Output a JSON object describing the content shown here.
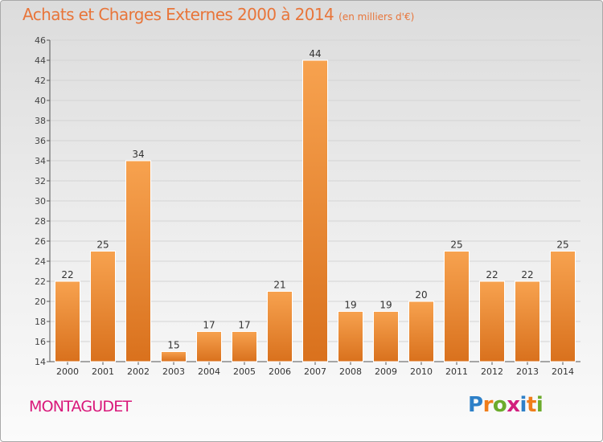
{
  "title": "Achats et Charges Externes 2000 à 2014",
  "unit": "(en milliers d'€)",
  "town": "MONTAGUDET",
  "logo": {
    "text": "Proxiti",
    "letter_colors": [
      "#2e80c8",
      "#f07d1a",
      "#6cab2c",
      "#d21e7d",
      "#2e80c8",
      "#f07d1a",
      "#6cab2c"
    ]
  },
  "colors": {
    "title": "#e8753a",
    "town": "#d9187a",
    "bar_light": "#f7a24f",
    "bar_dark": "#d9711d",
    "grid": "#d4d4d4"
  },
  "chart_data": {
    "type": "bar",
    "title": "Achats et Charges Externes 2000 à 2014",
    "ylabel": "(en milliers d'€)",
    "xlabel": "",
    "categories": [
      "2000",
      "2001",
      "2002",
      "2003",
      "2004",
      "2005",
      "2006",
      "2007",
      "2008",
      "2009",
      "2010",
      "2011",
      "2012",
      "2013",
      "2014"
    ],
    "values": [
      22,
      25,
      34,
      15,
      17,
      17,
      21,
      44,
      19,
      19,
      20,
      25,
      22,
      22,
      25
    ],
    "ylim": [
      14,
      46
    ],
    "yticks": [
      14,
      16,
      18,
      20,
      22,
      24,
      26,
      28,
      30,
      32,
      34,
      36,
      38,
      40,
      42,
      44,
      46
    ],
    "grid": true,
    "legend": "none"
  }
}
